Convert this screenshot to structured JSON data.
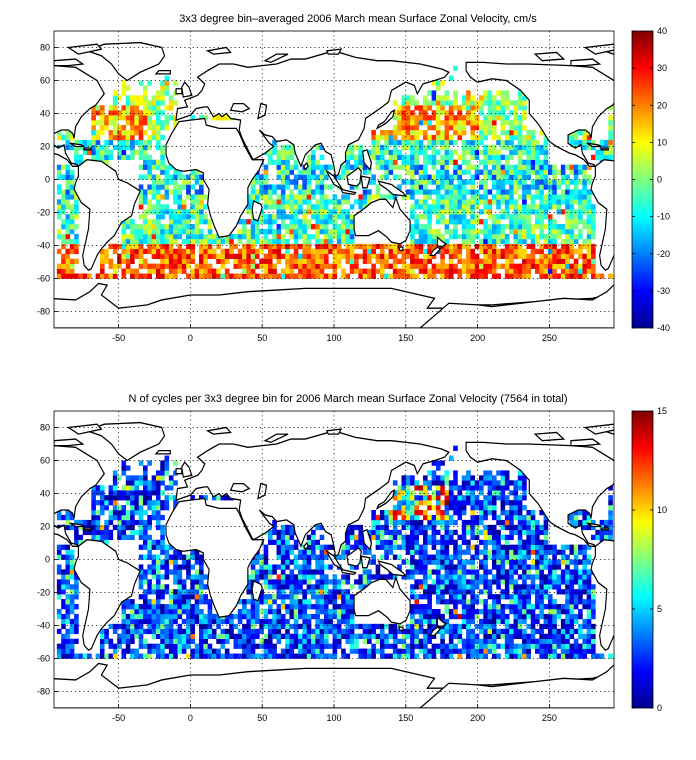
{
  "chart_data": [
    {
      "type": "heatmap",
      "title": "3x3 degree bin–averaged 2006 March mean Surface Zonal Velocity, cm/s",
      "bin_size_deg": 3,
      "xlim": [
        -95,
        295
      ],
      "ylim": [
        -90,
        90
      ],
      "xticks": [
        -50,
        0,
        50,
        100,
        150,
        200,
        250
      ],
      "yticks": [
        -80,
        -60,
        -40,
        -20,
        0,
        20,
        40,
        60,
        80
      ],
      "grid": true,
      "colorbar": {
        "min": -40,
        "max": 40,
        "ticks": [
          -40,
          -30,
          -20,
          -10,
          0,
          10,
          20,
          30,
          40
        ],
        "colormap": "jet"
      }
    },
    {
      "type": "heatmap",
      "title": "N of cycles per 3x3 degree bin for 2006 March mean Surface Zonal Velocity (7564 in total)",
      "bin_size_deg": 3,
      "xlim": [
        -95,
        295
      ],
      "ylim": [
        -90,
        90
      ],
      "xticks": [
        -50,
        0,
        50,
        100,
        150,
        200,
        250
      ],
      "yticks": [
        -80,
        -60,
        -40,
        -20,
        0,
        20,
        40,
        60,
        80
      ],
      "grid": true,
      "colorbar": {
        "min": 0,
        "max": 15,
        "ticks": [
          0,
          5,
          10,
          15
        ],
        "colormap": "jet"
      }
    }
  ]
}
